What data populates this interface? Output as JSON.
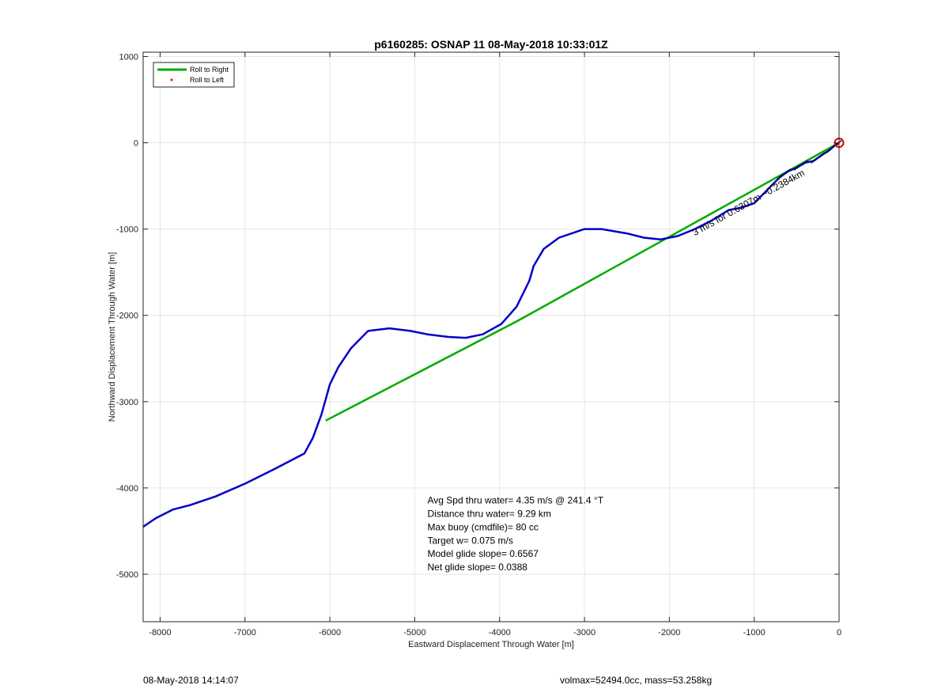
{
  "chart_data": {
    "type": "line",
    "title": "p6160285: OSNAP 11 08-May-2018 10:33:01Z",
    "xlabel": "Eastward Displacement Through Water [m]",
    "ylabel": "Northward Displacement Through Water [m]",
    "xlim": [
      -8200,
      0
    ],
    "ylim": [
      -5550,
      1050
    ],
    "xticks": [
      -8000,
      -7000,
      -6000,
      -5000,
      -4000,
      -3000,
      -2000,
      -1000,
      0
    ],
    "yticks": [
      1000,
      0,
      -1000,
      -2000,
      -3000,
      -4000,
      -5000
    ],
    "grid": true,
    "legend": {
      "position": "top-left",
      "entries": [
        {
          "label": "Roll to Right",
          "color": "#00aa00"
        },
        {
          "label": "Roll to Left",
          "color": "#ff0000"
        }
      ]
    },
    "series": [
      {
        "color": "#0000cc",
        "x": [
          -8200,
          -8050,
          -7850,
          -7650,
          -7350,
          -7000,
          -6650,
          -6300,
          -6200,
          -6100,
          -6000,
          -5900,
          -5750,
          -5550,
          -5300,
          -5050,
          -4850,
          -4600,
          -4400,
          -4200,
          -3980,
          -3800,
          -3700,
          -3650,
          -3600,
          -3480,
          -3300,
          -3000,
          -2800,
          -2500,
          -2300,
          -2100,
          -1900,
          -1700,
          -1500,
          -1300,
          -1150,
          -1000,
          -900,
          -800,
          -700,
          -600,
          -500,
          -400,
          -300,
          -200,
          -120,
          -50,
          0
        ],
        "y": [
          -4450,
          -4350,
          -4250,
          -4200,
          -4100,
          -3950,
          -3780,
          -3600,
          -3420,
          -3150,
          -2800,
          -2600,
          -2380,
          -2180,
          -2150,
          -2180,
          -2220,
          -2250,
          -2260,
          -2220,
          -2100,
          -1900,
          -1700,
          -1600,
          -1430,
          -1230,
          -1100,
          -1000,
          -1000,
          -1050,
          -1100,
          -1120,
          -1080,
          -1000,
          -900,
          -780,
          -750,
          -700,
          -600,
          -500,
          -400,
          -330,
          -290,
          -230,
          -210,
          -140,
          -90,
          -30,
          0
        ]
      },
      {
        "color": "#00aa00",
        "x": [
          -6050,
          -3800,
          0
        ],
        "y": [
          -3220,
          -2070,
          0
        ]
      }
    ],
    "markers": [
      {
        "x": 0,
        "y": 0,
        "color": "#dd0000"
      }
    ],
    "annotations": [
      {
        "text": "Avg Spd thru water=  4.35 m/s @ 241.4 °T",
        "x": -4850,
        "y": -4180
      },
      {
        "text": "Distance thru water=  9.29 km",
        "x": -4850,
        "y": -4335
      },
      {
        "text": "Max buoy (cmdfile)= 80 cc",
        "x": -4850,
        "y": -4490
      },
      {
        "text": "Target w= 0.075 m/s",
        "x": -4850,
        "y": -4645
      },
      {
        "text": "Model glide slope= 0.6567",
        "x": -4850,
        "y": -4800
      },
      {
        "text": "Net glide slope= 0.0388",
        "x": -4850,
        "y": -4955
      }
    ],
    "path_label": {
      "text": "3 m/s for 0.6307m ~0.2384km",
      "x": -1700,
      "y": -1080,
      "angle": -29
    }
  },
  "footer": {
    "left": "08-May-2018 14:14:07",
    "right": "volmax=52494.0cc, mass=53.258kg"
  }
}
